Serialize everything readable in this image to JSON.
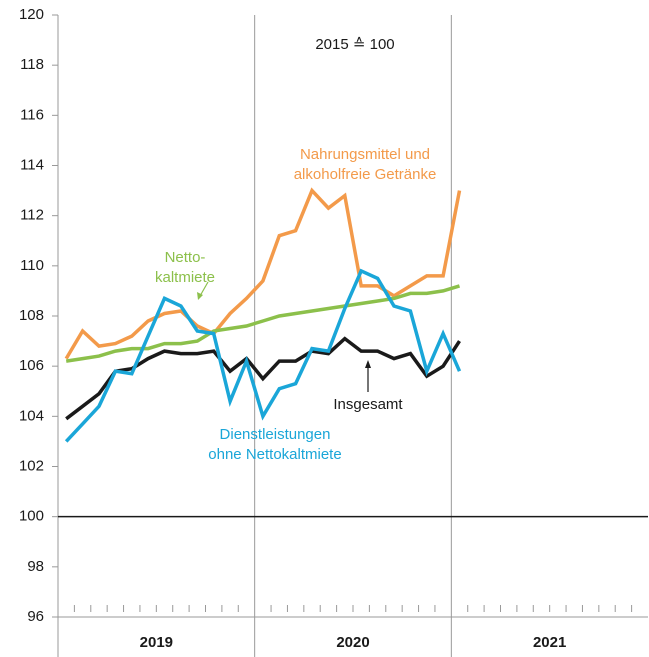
{
  "chart_data": {
    "type": "line",
    "annotation": "2015 ≙ 100",
    "categories": [
      null,
      null,
      null,
      null,
      null,
      null,
      null,
      null,
      null,
      null,
      null,
      null,
      null,
      null,
      null,
      null,
      null,
      null,
      null,
      null,
      null,
      null,
      null,
      null,
      null,
      null,
      null,
      null,
      null,
      null,
      null,
      null,
      null,
      null,
      null,
      null
    ],
    "year_groups": [
      "2019",
      "2020",
      "2021"
    ],
    "series": [
      {
        "name": [
          "Nahrungsmittel und",
          "alkoholfreie Getränke"
        ],
        "color": "#f39a4a",
        "values": [
          106.3,
          107.4,
          106.8,
          106.9,
          107.2,
          107.8,
          108.1,
          108.2,
          107.6,
          107.3,
          108.1,
          108.7,
          109.4,
          111.2,
          111.4,
          113.0,
          112.3,
          112.8,
          109.2,
          109.2,
          108.8,
          109.2,
          109.6,
          109.6,
          113.0,
          null,
          null,
          null,
          null,
          null,
          null,
          null,
          null,
          null,
          null,
          null
        ]
      },
      {
        "name": [
          "Netto-",
          "kaltmiete"
        ],
        "color": "#8cc04b",
        "values": [
          106.2,
          106.3,
          106.4,
          106.6,
          106.7,
          106.7,
          106.9,
          106.9,
          107.0,
          107.4,
          107.5,
          107.6,
          107.8,
          108.0,
          108.1,
          108.2,
          108.3,
          108.4,
          108.5,
          108.6,
          108.7,
          108.9,
          108.9,
          109.0,
          109.2,
          null,
          null,
          null,
          null,
          null,
          null,
          null,
          null,
          null,
          null,
          null
        ]
      },
      {
        "name": [
          "Insgesamt"
        ],
        "color": "#1a1a1a",
        "values": [
          103.9,
          104.4,
          104.9,
          105.8,
          105.9,
          106.3,
          106.6,
          106.5,
          106.5,
          106.6,
          105.8,
          106.3,
          105.5,
          106.2,
          106.2,
          106.6,
          106.5,
          107.1,
          106.6,
          106.6,
          106.3,
          106.5,
          105.6,
          106.0,
          107.0,
          null,
          null,
          null,
          null,
          null,
          null,
          null,
          null,
          null,
          null,
          null
        ]
      },
      {
        "name": [
          "Dienstleistungen",
          "ohne Nettokaltmiete"
        ],
        "color": "#1aa6d8",
        "values": [
          103.0,
          103.7,
          104.4,
          105.8,
          105.7,
          107.2,
          108.7,
          108.4,
          107.4,
          107.3,
          104.6,
          106.2,
          104.0,
          105.1,
          105.3,
          106.7,
          106.6,
          108.3,
          109.8,
          109.5,
          108.4,
          108.2,
          105.8,
          107.3,
          105.8,
          null,
          null,
          null,
          null,
          null,
          null,
          null,
          null,
          null,
          null,
          null
        ]
      }
    ],
    "ylim": [
      96,
      120
    ],
    "yticks": [
      96,
      98,
      100,
      102,
      104,
      106,
      108,
      110,
      112,
      114,
      116,
      118,
      120
    ],
    "reference_line": 100
  }
}
